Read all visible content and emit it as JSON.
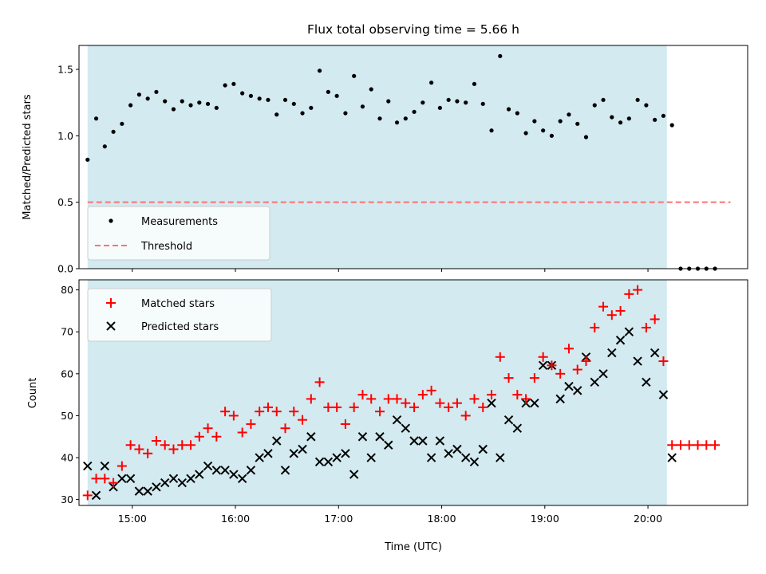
{
  "colors": {
    "shade": "#d2eaf0",
    "measurement": "#000000",
    "threshold": "#ff7070",
    "matched": "#ff0000",
    "predicted": "#000000"
  },
  "chart_data": [
    {
      "type": "scatter",
      "title": "Flux total observing time = 5.66 h",
      "xlabel": "",
      "ylabel": "Matched/Predicted stars",
      "xlim": [
        "14:29",
        "20:58"
      ],
      "ylim": [
        0,
        1.68
      ],
      "yticks": [
        0.0,
        0.5,
        1.0,
        1.5
      ],
      "ytick_labels": [
        "0.0",
        "0.5",
        "1.0",
        "1.5"
      ],
      "shaded_interval": [
        "14:34",
        "20:11"
      ],
      "legend": {
        "position": "lower-left",
        "entries": [
          "Measurements",
          "Threshold"
        ]
      },
      "threshold": {
        "name": "Threshold",
        "y": 0.5,
        "x": [
          "14:34",
          "20:48"
        ]
      },
      "series": [
        {
          "name": "Measurements",
          "marker": "dot",
          "points": [
            [
              "14:34",
              0.82
            ],
            [
              "14:39",
              1.13
            ],
            [
              "14:44",
              0.92
            ],
            [
              "14:49",
              1.03
            ],
            [
              "14:54",
              1.09
            ],
            [
              "14:59",
              1.23
            ],
            [
              "15:04",
              1.31
            ],
            [
              "15:09",
              1.28
            ],
            [
              "15:14",
              1.33
            ],
            [
              "15:19",
              1.26
            ],
            [
              "15:24",
              1.2
            ],
            [
              "15:29",
              1.26
            ],
            [
              "15:34",
              1.23
            ],
            [
              "15:39",
              1.25
            ],
            [
              "15:44",
              1.24
            ],
            [
              "15:49",
              1.21
            ],
            [
              "15:54",
              1.38
            ],
            [
              "15:59",
              1.39
            ],
            [
              "16:04",
              1.32
            ],
            [
              "16:09",
              1.3
            ],
            [
              "16:14",
              1.28
            ],
            [
              "16:19",
              1.27
            ],
            [
              "16:24",
              1.16
            ],
            [
              "16:29",
              1.27
            ],
            [
              "16:34",
              1.24
            ],
            [
              "16:39",
              1.17
            ],
            [
              "16:44",
              1.21
            ],
            [
              "16:49",
              1.49
            ],
            [
              "16:54",
              1.33
            ],
            [
              "16:59",
              1.3
            ],
            [
              "17:04",
              1.17
            ],
            [
              "17:09",
              1.45
            ],
            [
              "17:14",
              1.22
            ],
            [
              "17:19",
              1.35
            ],
            [
              "17:24",
              1.13
            ],
            [
              "17:29",
              1.26
            ],
            [
              "17:34",
              1.1
            ],
            [
              "17:39",
              1.13
            ],
            [
              "17:44",
              1.18
            ],
            [
              "17:49",
              1.25
            ],
            [
              "17:54",
              1.4
            ],
            [
              "17:59",
              1.21
            ],
            [
              "18:04",
              1.27
            ],
            [
              "18:09",
              1.26
            ],
            [
              "18:14",
              1.25
            ],
            [
              "18:19",
              1.39
            ],
            [
              "18:24",
              1.24
            ],
            [
              "18:29",
              1.04
            ],
            [
              "18:34",
              1.6
            ],
            [
              "18:39",
              1.2
            ],
            [
              "18:44",
              1.17
            ],
            [
              "18:49",
              1.02
            ],
            [
              "18:54",
              1.11
            ],
            [
              "18:59",
              1.04
            ],
            [
              "19:04",
              1.0
            ],
            [
              "19:09",
              1.11
            ],
            [
              "19:14",
              1.16
            ],
            [
              "19:19",
              1.09
            ],
            [
              "19:24",
              0.99
            ],
            [
              "19:29",
              1.23
            ],
            [
              "19:34",
              1.27
            ],
            [
              "19:39",
              1.14
            ],
            [
              "19:44",
              1.1
            ],
            [
              "19:49",
              1.13
            ],
            [
              "19:54",
              1.27
            ],
            [
              "19:59",
              1.23
            ],
            [
              "20:04",
              1.12
            ],
            [
              "20:09",
              1.15
            ],
            [
              "20:14",
              1.08
            ],
            [
              "20:19",
              0.0
            ],
            [
              "20:24",
              0.0
            ],
            [
              "20:29",
              0.0
            ],
            [
              "20:34",
              0.0
            ],
            [
              "20:39",
              0.0
            ]
          ]
        }
      ]
    },
    {
      "type": "scatter",
      "title": "",
      "xlabel": "Time (UTC)",
      "ylabel": "Count",
      "xlim": [
        "14:29",
        "20:58"
      ],
      "ylim": [
        28.6,
        82.4
      ],
      "xticks": [
        "15:00",
        "16:00",
        "17:00",
        "18:00",
        "19:00",
        "20:00"
      ],
      "xtick_labels": [
        "15:00",
        "16:00",
        "17:00",
        "18:00",
        "19:00",
        "20:00"
      ],
      "yticks": [
        30,
        40,
        50,
        60,
        70,
        80
      ],
      "ytick_labels": [
        "30",
        "40",
        "50",
        "60",
        "70",
        "80"
      ],
      "shaded_interval": [
        "14:34",
        "20:11"
      ],
      "legend": {
        "position": "top-left",
        "entries": [
          "Matched stars",
          "Predicted stars"
        ]
      },
      "series": [
        {
          "name": "Matched stars",
          "marker": "plus",
          "points": [
            [
              "14:34",
              31
            ],
            [
              "14:39",
              35
            ],
            [
              "14:44",
              35
            ],
            [
              "14:49",
              34
            ],
            [
              "14:54",
              38
            ],
            [
              "14:59",
              43
            ],
            [
              "15:04",
              42
            ],
            [
              "15:09",
              41
            ],
            [
              "15:14",
              44
            ],
            [
              "15:19",
              43
            ],
            [
              "15:24",
              42
            ],
            [
              "15:29",
              43
            ],
            [
              "15:34",
              43
            ],
            [
              "15:39",
              45
            ],
            [
              "15:44",
              47
            ],
            [
              "15:49",
              45
            ],
            [
              "15:54",
              51
            ],
            [
              "15:59",
              50
            ],
            [
              "16:04",
              46
            ],
            [
              "16:09",
              48
            ],
            [
              "16:14",
              51
            ],
            [
              "16:19",
              52
            ],
            [
              "16:24",
              51
            ],
            [
              "16:29",
              47
            ],
            [
              "16:34",
              51
            ],
            [
              "16:39",
              49
            ],
            [
              "16:44",
              54
            ],
            [
              "16:49",
              58
            ],
            [
              "16:54",
              52
            ],
            [
              "16:59",
              52
            ],
            [
              "17:04",
              48
            ],
            [
              "17:09",
              52
            ],
            [
              "17:14",
              55
            ],
            [
              "17:19",
              54
            ],
            [
              "17:24",
              51
            ],
            [
              "17:29",
              54
            ],
            [
              "17:34",
              54
            ],
            [
              "17:39",
              53
            ],
            [
              "17:44",
              52
            ],
            [
              "17:49",
              55
            ],
            [
              "17:54",
              56
            ],
            [
              "17:59",
              53
            ],
            [
              "18:04",
              52
            ],
            [
              "18:09",
              53
            ],
            [
              "18:14",
              50
            ],
            [
              "18:19",
              54
            ],
            [
              "18:24",
              52
            ],
            [
              "18:29",
              55
            ],
            [
              "18:34",
              64
            ],
            [
              "18:39",
              59
            ],
            [
              "18:44",
              55
            ],
            [
              "18:49",
              54
            ],
            [
              "18:54",
              59
            ],
            [
              "18:59",
              64
            ],
            [
              "19:04",
              62
            ],
            [
              "19:09",
              60
            ],
            [
              "19:14",
              66
            ],
            [
              "19:19",
              61
            ],
            [
              "19:24",
              63
            ],
            [
              "19:29",
              71
            ],
            [
              "19:34",
              76
            ],
            [
              "19:39",
              74
            ],
            [
              "19:44",
              75
            ],
            [
              "19:49",
              79
            ],
            [
              "19:54",
              80
            ],
            [
              "19:59",
              71
            ],
            [
              "20:04",
              73
            ],
            [
              "20:09",
              63
            ],
            [
              "20:14",
              43
            ],
            [
              "20:19",
              43
            ],
            [
              "20:24",
              43
            ],
            [
              "20:29",
              43
            ],
            [
              "20:34",
              43
            ],
            [
              "20:39",
              43
            ]
          ]
        },
        {
          "name": "Predicted stars",
          "marker": "x",
          "points": [
            [
              "14:34",
              38
            ],
            [
              "14:39",
              31
            ],
            [
              "14:44",
              38
            ],
            [
              "14:49",
              33
            ],
            [
              "14:54",
              35
            ],
            [
              "14:59",
              35
            ],
            [
              "15:04",
              32
            ],
            [
              "15:09",
              32
            ],
            [
              "15:14",
              33
            ],
            [
              "15:19",
              34
            ],
            [
              "15:24",
              35
            ],
            [
              "15:29",
              34
            ],
            [
              "15:34",
              35
            ],
            [
              "15:39",
              36
            ],
            [
              "15:44",
              38
            ],
            [
              "15:49",
              37
            ],
            [
              "15:54",
              37
            ],
            [
              "15:59",
              36
            ],
            [
              "16:04",
              35
            ],
            [
              "16:09",
              37
            ],
            [
              "16:14",
              40
            ],
            [
              "16:19",
              41
            ],
            [
              "16:24",
              44
            ],
            [
              "16:29",
              37
            ],
            [
              "16:34",
              41
            ],
            [
              "16:39",
              42
            ],
            [
              "16:44",
              45
            ],
            [
              "16:49",
              39
            ],
            [
              "16:54",
              39
            ],
            [
              "16:59",
              40
            ],
            [
              "17:04",
              41
            ],
            [
              "17:09",
              36
            ],
            [
              "17:14",
              45
            ],
            [
              "17:19",
              40
            ],
            [
              "17:24",
              45
            ],
            [
              "17:29",
              43
            ],
            [
              "17:34",
              49
            ],
            [
              "17:39",
              47
            ],
            [
              "17:44",
              44
            ],
            [
              "17:49",
              44
            ],
            [
              "17:54",
              40
            ],
            [
              "17:59",
              44
            ],
            [
              "18:04",
              41
            ],
            [
              "18:09",
              42
            ],
            [
              "18:14",
              40
            ],
            [
              "18:19",
              39
            ],
            [
              "18:24",
              42
            ],
            [
              "18:29",
              53
            ],
            [
              "18:34",
              40
            ],
            [
              "18:39",
              49
            ],
            [
              "18:44",
              47
            ],
            [
              "18:49",
              53
            ],
            [
              "18:54",
              53
            ],
            [
              "18:59",
              62
            ],
            [
              "19:04",
              62
            ],
            [
              "19:09",
              54
            ],
            [
              "19:14",
              57
            ],
            [
              "19:19",
              56
            ],
            [
              "19:24",
              64
            ],
            [
              "19:29",
              58
            ],
            [
              "19:34",
              60
            ],
            [
              "19:39",
              65
            ],
            [
              "19:44",
              68
            ],
            [
              "19:49",
              70
            ],
            [
              "19:54",
              63
            ],
            [
              "19:59",
              58
            ],
            [
              "20:04",
              65
            ],
            [
              "20:09",
              55
            ],
            [
              "20:14",
              40
            ]
          ]
        }
      ]
    }
  ]
}
